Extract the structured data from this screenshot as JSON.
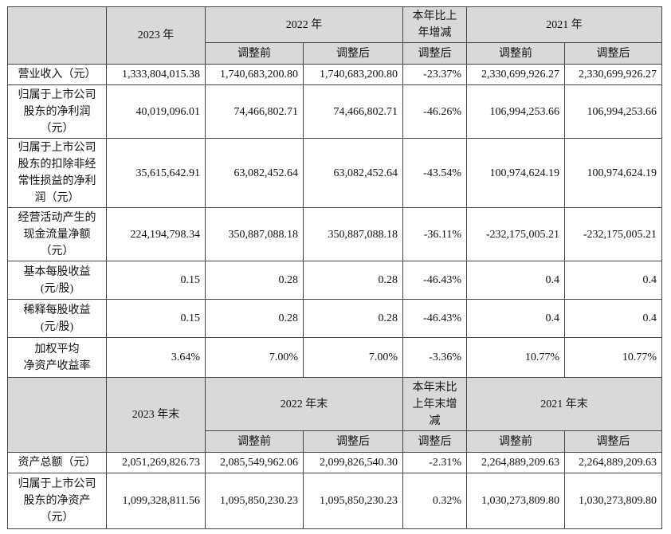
{
  "sections": [
    {
      "header": {
        "current": "2023 年",
        "previous": "2022 年",
        "change": [
          "本年比上",
          "年增减"
        ],
        "previous2": "2021 年",
        "sub": [
          "调整前",
          "调整后",
          "调整后",
          "调整前",
          "调整后"
        ]
      },
      "rows": [
        {
          "label": [
            "营业收入（元）"
          ],
          "cells": [
            "1,333,804,015.38",
            "1,740,683,200.80",
            "1,740,683,200.80",
            "-23.37%",
            "2,330,699,926.27",
            "2,330,699,926.27"
          ]
        },
        {
          "label": [
            "归属于上市公司",
            "股东的净利润",
            "（元）"
          ],
          "cells": [
            "40,019,096.01",
            "74,466,802.71",
            "74,466,802.71",
            "-46.26%",
            "106,994,253.66",
            "106,994,253.66"
          ]
        },
        {
          "label": [
            "归属于上市公司",
            "股东的扣除非经",
            "常性损益的净利",
            "润（元）"
          ],
          "cells": [
            "35,615,642.91",
            "63,082,452.64",
            "63,082,452.64",
            "-43.54%",
            "100,974,624.19",
            "100,974,624.19"
          ]
        },
        {
          "label": [
            "经营活动产生的",
            "现金流量净额",
            "（元）"
          ],
          "cells": [
            "224,194,798.34",
            "350,887,088.18",
            "350,887,088.18",
            "-36.11%",
            "-232,175,005.21",
            "-232,175,005.21"
          ]
        },
        {
          "label": [
            "基本每股收益",
            "(元/股)"
          ],
          "cells": [
            "0.15",
            "0.28",
            "0.28",
            "-46.43%",
            "0.4",
            "0.4"
          ]
        },
        {
          "label": [
            "稀释每股收益",
            "(元/股)"
          ],
          "cells": [
            "0.15",
            "0.28",
            "0.28",
            "-46.43%",
            "0.4",
            "0.4"
          ]
        },
        {
          "label": [
            "加权平均",
            "净资产收益率"
          ],
          "cells": [
            "3.64%",
            "7.00%",
            "7.00%",
            "-3.36%",
            "10.77%",
            "10.77%"
          ]
        }
      ]
    },
    {
      "header": {
        "current": "2023 年末",
        "previous": "2022 年末",
        "change": [
          "本年末比",
          "上年末增",
          "减"
        ],
        "previous2": "2021 年末",
        "sub": [
          "调整前",
          "调整后",
          "调整后",
          "调整前",
          "调整后"
        ]
      },
      "rows": [
        {
          "label": [
            "资产总额（元）"
          ],
          "cells": [
            "2,051,269,826.73",
            "2,085,549,962.06",
            "2,099,826,540.30",
            "-2.31%",
            "2,264,889,209.63",
            "2,264,889,209.63"
          ]
        },
        {
          "label": [
            "归属于上市公司",
            "股东的净资产",
            "（元）"
          ],
          "cells": [
            "1,099,328,811.56",
            "1,095,850,230.23",
            "1,095,850,230.23",
            "0.32%",
            "1,030,273,809.80",
            "1,030,273,809.80"
          ]
        }
      ]
    }
  ]
}
